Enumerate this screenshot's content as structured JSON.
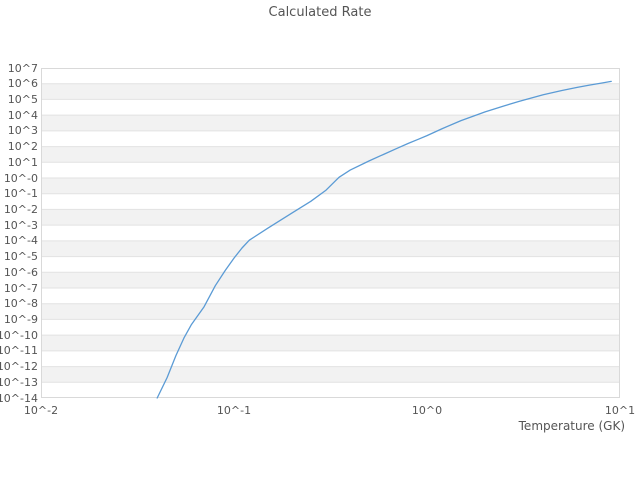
{
  "title": "Calculated Rate",
  "colors": {
    "background": "#ffffff",
    "text": "#555555",
    "band": "#f2f2f2",
    "gridline": "#e2e2e2",
    "border": "#d9d9d9",
    "line": "#5b9bd5"
  },
  "chart_data": {
    "type": "line",
    "title": "Calculated Rate",
    "xlabel": "Temperature (GK)",
    "ylabel": "",
    "x_scale": "log",
    "y_scale": "log",
    "x_tick_labels": [
      "10^-2",
      "10^-1",
      "10^0",
      "10^1"
    ],
    "x_tick_exponents": [
      -2,
      -1,
      0,
      1
    ],
    "y_tick_labels": [
      "10^7",
      "10^6",
      "10^5",
      "10^4",
      "10^3",
      "10^2",
      "10^1",
      "10^-0",
      "10^-1",
      "10^-2",
      "10^-3",
      "10^-4",
      "10^-5",
      "10^-6",
      "10^-7",
      "10^-8",
      "10^-9",
      "10^-10",
      "10^-11",
      "10^-12",
      "10^-13",
      "10^-14"
    ],
    "y_tick_exponents": [
      7,
      6,
      5,
      4,
      3,
      2,
      1,
      0,
      -1,
      -2,
      -3,
      -4,
      -5,
      -6,
      -7,
      -8,
      -9,
      -10,
      -11,
      -12,
      -13,
      -14
    ],
    "xlim": [
      0.01,
      10
    ],
    "ylim": [
      1e-14,
      10000000.0
    ],
    "grid": "horizontal-bands",
    "legend": "none",
    "series": [
      {
        "name": "calculated-rate",
        "color": "#5b9bd5",
        "points": [
          [
            0.04,
            1e-14
          ],
          [
            0.045,
            2e-13
          ],
          [
            0.05,
            5e-12
          ],
          [
            0.055,
            6.5e-11
          ],
          [
            0.06,
            4.5e-10
          ],
          [
            0.07,
            6.5e-09
          ],
          [
            0.08,
            1.4e-07
          ],
          [
            0.09,
            1.3e-06
          ],
          [
            0.1,
            8e-06
          ],
          [
            0.11,
            3.5e-05
          ],
          [
            0.12,
            0.00011
          ],
          [
            0.15,
            0.00065
          ],
          [
            0.2,
            0.006
          ],
          [
            0.25,
            0.033
          ],
          [
            0.3,
            0.17
          ],
          [
            0.35,
            1.1
          ],
          [
            0.4,
            3.2
          ],
          [
            0.5,
            12
          ],
          [
            0.6,
            33
          ],
          [
            0.7,
            78
          ],
          [
            0.8,
            160
          ],
          [
            0.9,
            290
          ],
          [
            1.0,
            500
          ],
          [
            1.2,
            1400
          ],
          [
            1.5,
            4500
          ],
          [
            2.0,
            16000
          ],
          [
            2.5,
            38000
          ],
          [
            3.0,
            75000
          ],
          [
            4.0,
            200000
          ],
          [
            5.0,
            370000
          ],
          [
            6.0,
            580000
          ],
          [
            7.0,
            830000
          ],
          [
            8.0,
            1100000
          ],
          [
            9.0,
            1400000
          ]
        ]
      }
    ]
  }
}
